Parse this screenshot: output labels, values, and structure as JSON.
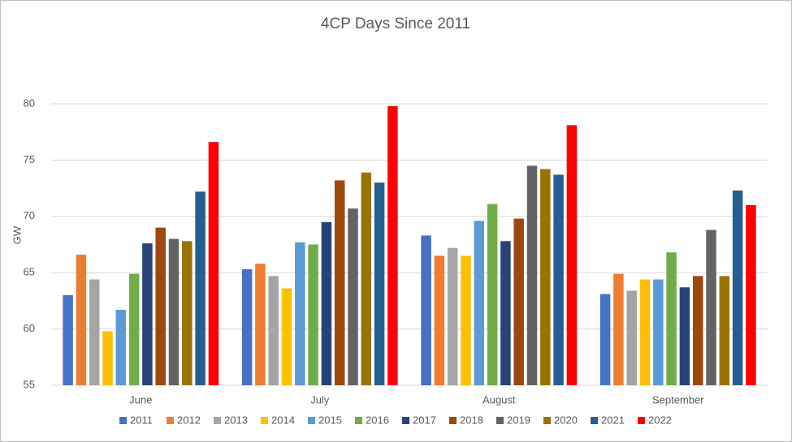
{
  "chart_data": {
    "type": "bar",
    "title": "4CP Days Since 2011",
    "y_label": "GW",
    "categories": [
      "June",
      "July",
      "August",
      "September"
    ],
    "series": [
      {
        "name": "2011",
        "color": "#4472c4",
        "values": [
          63.0,
          65.3,
          68.3,
          63.1
        ]
      },
      {
        "name": "2012",
        "color": "#ed7d31",
        "values": [
          66.6,
          65.8,
          66.5,
          64.9
        ]
      },
      {
        "name": "2013",
        "color": "#a5a5a5",
        "values": [
          64.4,
          64.7,
          67.2,
          63.4
        ]
      },
      {
        "name": "2014",
        "color": "#ffc000",
        "values": [
          59.8,
          63.6,
          66.5,
          64.4
        ]
      },
      {
        "name": "2015",
        "color": "#5b9bd5",
        "values": [
          61.7,
          67.7,
          69.6,
          64.4
        ]
      },
      {
        "name": "2016",
        "color": "#70ad47",
        "values": [
          64.9,
          67.5,
          71.1,
          66.8
        ]
      },
      {
        "name": "2017",
        "color": "#264478",
        "values": [
          67.6,
          69.5,
          67.8,
          63.7
        ]
      },
      {
        "name": "2018",
        "color": "#9e480e",
        "values": [
          69.0,
          73.2,
          69.8,
          64.7
        ]
      },
      {
        "name": "2019",
        "color": "#636363",
        "values": [
          68.0,
          70.7,
          74.5,
          68.8
        ]
      },
      {
        "name": "2020",
        "color": "#997300",
        "values": [
          67.8,
          73.9,
          74.2,
          64.7
        ]
      },
      {
        "name": "2021",
        "color": "#255e91",
        "values": [
          72.2,
          73.0,
          73.7,
          72.3
        ]
      },
      {
        "name": "2022",
        "color": "#ff0000",
        "values": [
          76.6,
          79.8,
          78.1,
          71.0
        ]
      }
    ],
    "ylim": [
      55,
      80
    ],
    "yticks": [
      55,
      60,
      65,
      70,
      75,
      80
    ],
    "grid": true,
    "legend": "bottom"
  }
}
